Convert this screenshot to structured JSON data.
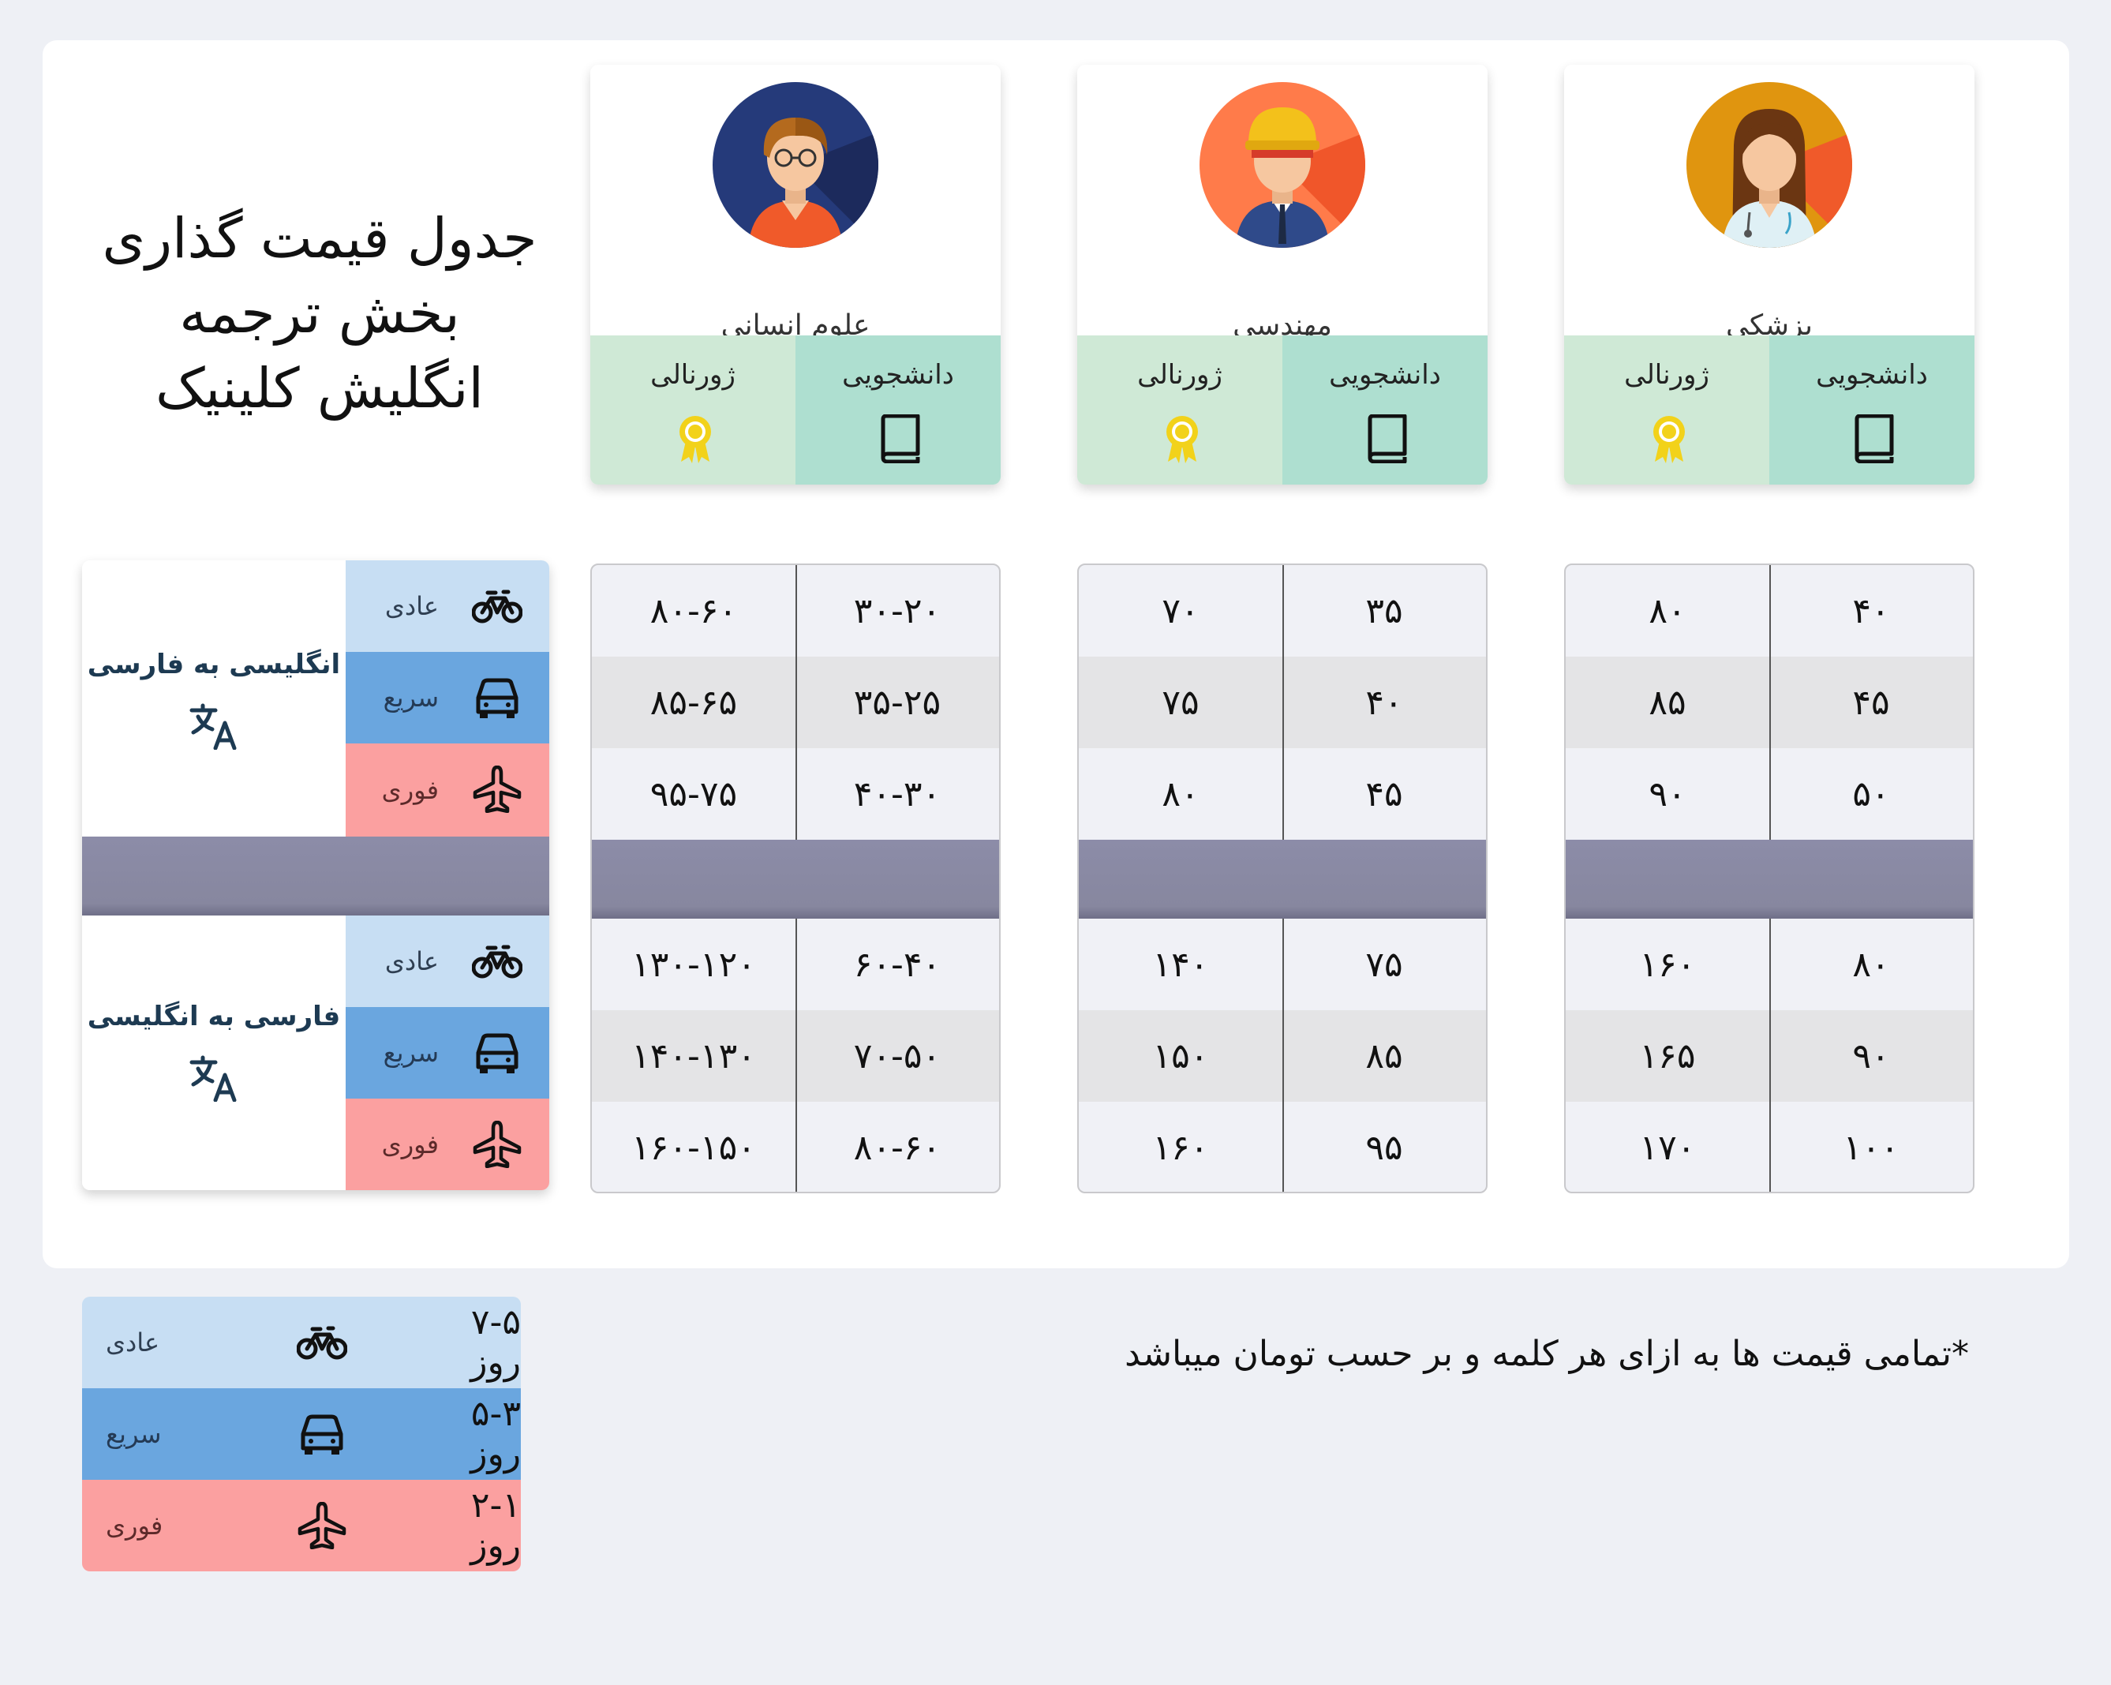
{
  "title_lines": [
    "جدول قیمت گذاری",
    "بخش ترجمه",
    "انگلیش کلینیک"
  ],
  "categories": [
    {
      "name": "پزشکی",
      "student": "دانشجویی",
      "journal": "ژورنالی"
    },
    {
      "name": "مهندسی",
      "student": "دانشجویی",
      "journal": "ژورنالی"
    },
    {
      "name": "علوم انسانی",
      "student": "دانشجویی",
      "journal": "ژورنالی"
    }
  ],
  "directions": [
    "انگلیسی به فارسی",
    "فارسی به انگلیسی"
  ],
  "speeds": {
    "normal": "عادی",
    "fast": "سریع",
    "urgent": "فوری"
  },
  "prices": {
    "medical": {
      "en_fa": [
        [
          "۴۰",
          "۸۰"
        ],
        [
          "۴۵",
          "۸۵"
        ],
        [
          "۵۰",
          "۹۰"
        ]
      ],
      "fa_en": [
        [
          "۸۰",
          "۱۶۰"
        ],
        [
          "۹۰",
          "۱۶۵"
        ],
        [
          "۱۰۰",
          "۱۷۰"
        ]
      ]
    },
    "engineering": {
      "en_fa": [
        [
          "۳۵",
          "۷۰"
        ],
        [
          "۴۰",
          "۷۵"
        ],
        [
          "۴۵",
          "۸۰"
        ]
      ],
      "fa_en": [
        [
          "۷۵",
          "۱۴۰"
        ],
        [
          "۸۵",
          "۱۵۰"
        ],
        [
          "۹۵",
          "۱۶۰"
        ]
      ]
    },
    "humanities": {
      "en_fa": [
        [
          "۳۰-۲۰",
          "۸۰-۶۰"
        ],
        [
          "۳۵-۲۵",
          "۸۵-۶۵"
        ],
        [
          "۴۰-۳۰",
          "۹۵-۷۵"
        ]
      ],
      "fa_en": [
        [
          "۶۰-۴۰",
          "۱۳۰-۱۲۰"
        ],
        [
          "۷۰-۵۰",
          "۱۴۰-۱۳۰"
        ],
        [
          "۸۰-۶۰",
          "۱۶۰-۱۵۰"
        ]
      ]
    }
  },
  "legend": [
    {
      "label": "عادی",
      "days": "۷-۵ روز",
      "icon": "bicycle-icon"
    },
    {
      "label": "سریع",
      "days": "۵-۳ روز",
      "icon": "car-icon"
    },
    {
      "label": "فوری",
      "days": "۲-۱ روز",
      "icon": "airplane-icon"
    }
  ],
  "note": "*تمامی قیمت ها به ازای هر کلمه و بر حسب تومان میباشد",
  "colors": {
    "student": "#aedfd0",
    "journal": "#cfe9d6",
    "normal": "#c7def3",
    "fast": "#6aa6df",
    "urgent": "#fba0a0",
    "band": "#8b8ba6",
    "badge": "#f2d21a"
  }
}
